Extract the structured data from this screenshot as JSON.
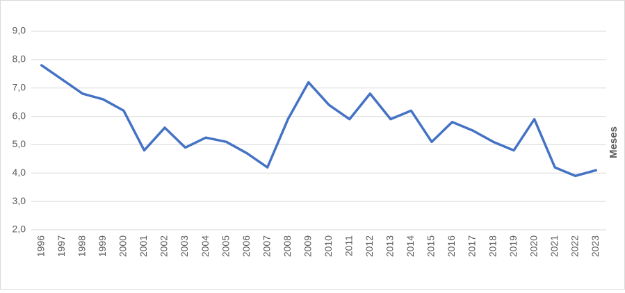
{
  "chart_data": {
    "type": "line",
    "y_label": "Meses",
    "categories": [
      "1996",
      "1997",
      "1998",
      "1999",
      "2000",
      "2001",
      "2002",
      "2003",
      "2004",
      "2005",
      "2006",
      "2007",
      "2008",
      "2009",
      "2010",
      "2011",
      "2012",
      "2013",
      "2014",
      "2015",
      "2016",
      "2017",
      "2018",
      "2019",
      "2020",
      "2021",
      "2022",
      "2023"
    ],
    "series": [
      {
        "color": "#4472c4",
        "values": [
          7.8,
          7.3,
          6.8,
          6.6,
          6.2,
          4.8,
          5.6,
          4.9,
          5.25,
          5.1,
          4.7,
          4.2,
          5.9,
          7.2,
          6.4,
          5.9,
          6.8,
          5.9,
          6.2,
          5.1,
          5.8,
          5.5,
          5.1,
          4.8,
          5.9,
          4.2,
          3.9,
          4.1
        ]
      }
    ],
    "ylim": [
      2,
      9
    ],
    "yticks": [
      {
        "value": 2,
        "label": "2,0"
      },
      {
        "value": 3,
        "label": "3,0"
      },
      {
        "value": 4,
        "label": "4,0"
      },
      {
        "value": 5,
        "label": "5,0"
      },
      {
        "value": 6,
        "label": "6,0"
      },
      {
        "value": 7,
        "label": "7,0"
      },
      {
        "value": 8,
        "label": "8,0"
      },
      {
        "value": 9,
        "label": "9,0"
      }
    ],
    "grid": true
  }
}
